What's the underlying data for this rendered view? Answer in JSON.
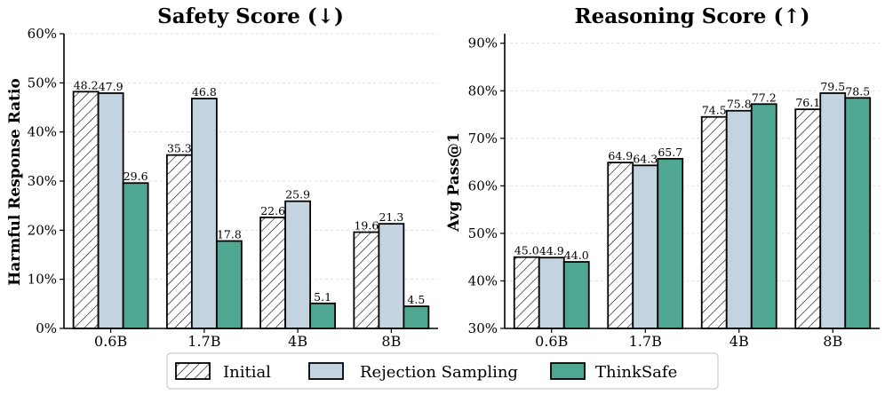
{
  "chart_data": [
    {
      "type": "bar",
      "title": "Safety Score (↓)",
      "xlabel": "",
      "ylabel": "Harmful Response Ratio",
      "categories": [
        "0.6B",
        "1.7B",
        "4B",
        "8B"
      ],
      "series": [
        {
          "name": "Initial",
          "values": [
            48.2,
            35.3,
            22.6,
            19.6
          ]
        },
        {
          "name": "Rejection Sampling",
          "values": [
            47.9,
            46.8,
            25.9,
            21.3
          ]
        },
        {
          "name": "ThinkSafe",
          "values": [
            29.6,
            17.8,
            5.1,
            4.5
          ]
        }
      ],
      "data_labels": [
        [
          "48.2",
          "35.3",
          "22.6",
          "19.6"
        ],
        [
          "47.9",
          "46.8",
          "25.9",
          "21.3"
        ],
        [
          "29.6",
          "17.8",
          "5.1",
          "4.5"
        ]
      ],
      "ylim": [
        0,
        60
      ],
      "yticks": [
        0,
        10,
        20,
        30,
        40,
        50,
        60
      ],
      "ytick_labels": [
        "0%",
        "10%",
        "20%",
        "30%",
        "40%",
        "50%",
        "60%"
      ],
      "grid": true
    },
    {
      "type": "bar",
      "title": "Reasoning Score (↑)",
      "xlabel": "",
      "ylabel": "Avg Pass@1",
      "categories": [
        "0.6B",
        "1.7B",
        "4B",
        "8B"
      ],
      "series": [
        {
          "name": "Initial",
          "values": [
            45.0,
            64.9,
            74.5,
            76.1
          ]
        },
        {
          "name": "Rejection Sampling",
          "values": [
            44.9,
            64.3,
            75.8,
            79.5
          ]
        },
        {
          "name": "ThinkSafe",
          "values": [
            44.0,
            65.7,
            77.2,
            78.5
          ]
        }
      ],
      "data_labels": [
        [
          "45.0",
          "64.9",
          "74.5",
          "76.1"
        ],
        [
          "44.9",
          "64.3",
          "75.8",
          "79.5"
        ],
        [
          "44.0",
          "65.7",
          "77.2",
          "78.5"
        ]
      ],
      "ylim": [
        30,
        92
      ],
      "yticks": [
        30,
        40,
        50,
        60,
        70,
        80,
        90
      ],
      "ytick_labels": [
        "30%",
        "40%",
        "50%",
        "60%",
        "70%",
        "80%",
        "90%"
      ],
      "grid": true
    }
  ],
  "legend": {
    "placement": "bottom-center",
    "entries": [
      "Initial",
      "Rejection Sampling",
      "ThinkSafe"
    ]
  },
  "colors": {
    "initial_fill": "#ffffff",
    "rejection_fill": "#c3d3df",
    "thinksafe_fill": "#4fa792",
    "edge": "#000000",
    "grid": "#d9d9d9"
  }
}
